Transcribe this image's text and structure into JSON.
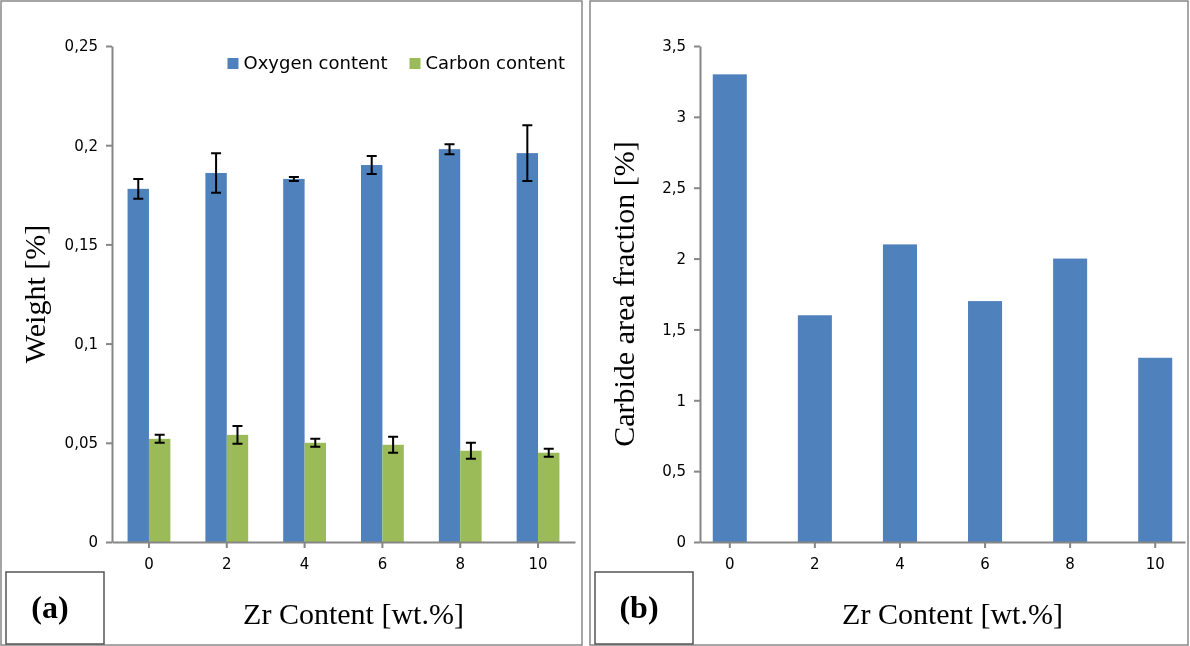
{
  "chart_data": [
    {
      "type": "bar",
      "xlabel": "Zr Content [wt.%]",
      "ylabel": "Weight [%]",
      "categories": [
        "0",
        "2",
        "4",
        "6",
        "8",
        "10"
      ],
      "series": [
        {
          "name": "Oxygen content",
          "color": "#4f81bd",
          "values": [
            0.178,
            0.186,
            0.183,
            0.19,
            0.198,
            0.196
          ],
          "errors": [
            0.005,
            0.01,
            0.001,
            0.0045,
            0.0025,
            0.014
          ]
        },
        {
          "name": "Carbon content",
          "color": "#9bbb59",
          "values": [
            0.052,
            0.054,
            0.05,
            0.049,
            0.046,
            0.045
          ],
          "errors": [
            0.002,
            0.0045,
            0.002,
            0.004,
            0.004,
            0.002
          ]
        }
      ],
      "ylim": [
        0,
        0.25
      ],
      "yticks": [
        {
          "value": 0,
          "label": "0"
        },
        {
          "value": 0.05,
          "label": "0,05"
        },
        {
          "value": 0.1,
          "label": "0,1"
        },
        {
          "value": 0.15,
          "label": "0,15"
        },
        {
          "value": 0.2,
          "label": "0,2"
        },
        {
          "value": 0.25,
          "label": "0,25"
        }
      ],
      "legend": "top right",
      "annotations": [
        "(a)"
      ]
    },
    {
      "type": "bar",
      "xlabel": "Zr Content [wt.%]",
      "ylabel": "Carbide area fraction [%]",
      "categories": [
        "0",
        "2",
        "4",
        "6",
        "8",
        "10"
      ],
      "values": [
        3.3,
        1.6,
        2.1,
        1.7,
        2.0,
        1.3
      ],
      "color": "#4f81bd",
      "ylim": [
        0,
        3.5
      ],
      "yticks": [
        {
          "value": 0,
          "label": "0"
        },
        {
          "value": 0.5,
          "label": "0,5"
        },
        {
          "value": 1,
          "label": "1"
        },
        {
          "value": 1.5,
          "label": "1,5"
        },
        {
          "value": 2,
          "label": "2"
        },
        {
          "value": 2.5,
          "label": "2,5"
        },
        {
          "value": 3,
          "label": "3"
        },
        {
          "value": 3.5,
          "label": "3,5"
        }
      ],
      "annotations": [
        "(b)"
      ]
    }
  ]
}
